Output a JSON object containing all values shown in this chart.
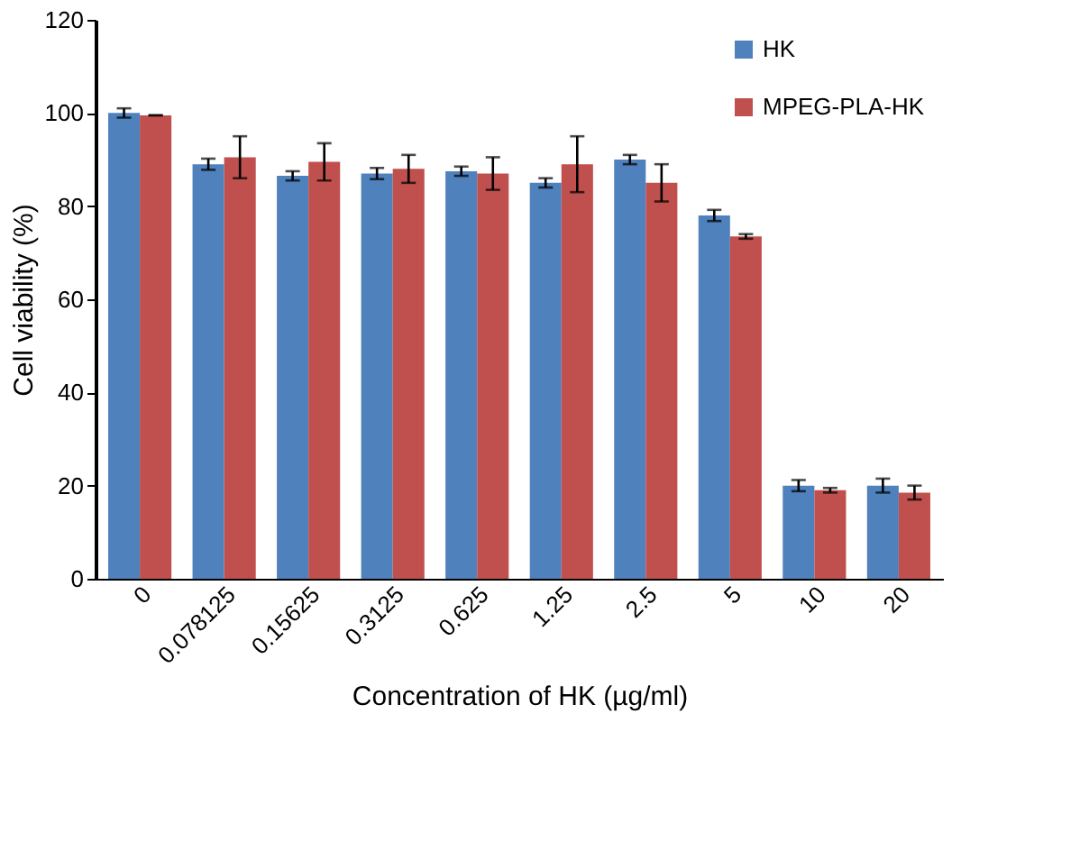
{
  "chart_data": {
    "type": "bar",
    "xlabel": "Concentration of HK (µg/ml)",
    "ylabel": "Cell viability (%)",
    "categories": [
      "0",
      "0.078125",
      "0.15625",
      "0.3125",
      "0.625",
      "1.25",
      "2.5",
      "5",
      "10",
      "20"
    ],
    "series": [
      {
        "name": "HK",
        "color": "#4f81bd",
        "values": [
          100,
          89,
          86.5,
          87,
          87.5,
          85,
          90,
          78,
          20,
          20
        ],
        "errors": [
          1,
          1.2,
          1,
          1.2,
          1,
          1,
          1,
          1.2,
          1.2,
          1.5
        ]
      },
      {
        "name": "MPEG-PLA-HK",
        "color": "#c0504d",
        "values": [
          99.5,
          90.5,
          89.5,
          88,
          87,
          89,
          85,
          73.5,
          19,
          18.5
        ],
        "errors": [
          0,
          4.5,
          4,
          3,
          3.5,
          6,
          4,
          0.5,
          0.5,
          1.5
        ]
      }
    ],
    "ylim": [
      0,
      120
    ],
    "yticks": [
      0,
      20,
      40,
      60,
      80,
      100,
      120
    ],
    "grid": false,
    "legend": "top right"
  }
}
